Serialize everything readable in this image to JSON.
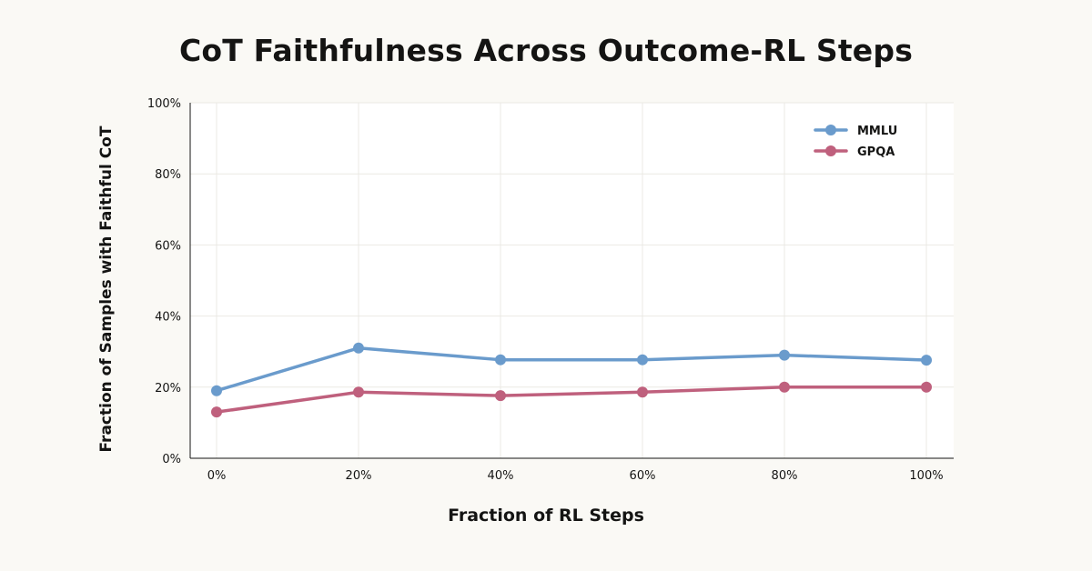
{
  "chart_data": {
    "type": "line",
    "title": "CoT Faithfulness Across Outcome-RL Steps",
    "xlabel": "Fraction of RL Steps",
    "ylabel": "Fraction of Samples with Faithful CoT",
    "categories": [
      "0%",
      "20%",
      "40%",
      "60%",
      "80%",
      "100%"
    ],
    "y_ticks": [
      "0%",
      "20%",
      "40%",
      "60%",
      "80%",
      "100%"
    ],
    "ylim": [
      0,
      100
    ],
    "grid": true,
    "legend_position": "top-right",
    "series": [
      {
        "name": "MMLU",
        "color": "#6a9bcc",
        "values": [
          19,
          31,
          27.7,
          27.7,
          29,
          27.6
        ]
      },
      {
        "name": "GPQA",
        "color": "#bf607d",
        "values": [
          13,
          18.6,
          17.6,
          18.6,
          20,
          20
        ]
      }
    ]
  }
}
